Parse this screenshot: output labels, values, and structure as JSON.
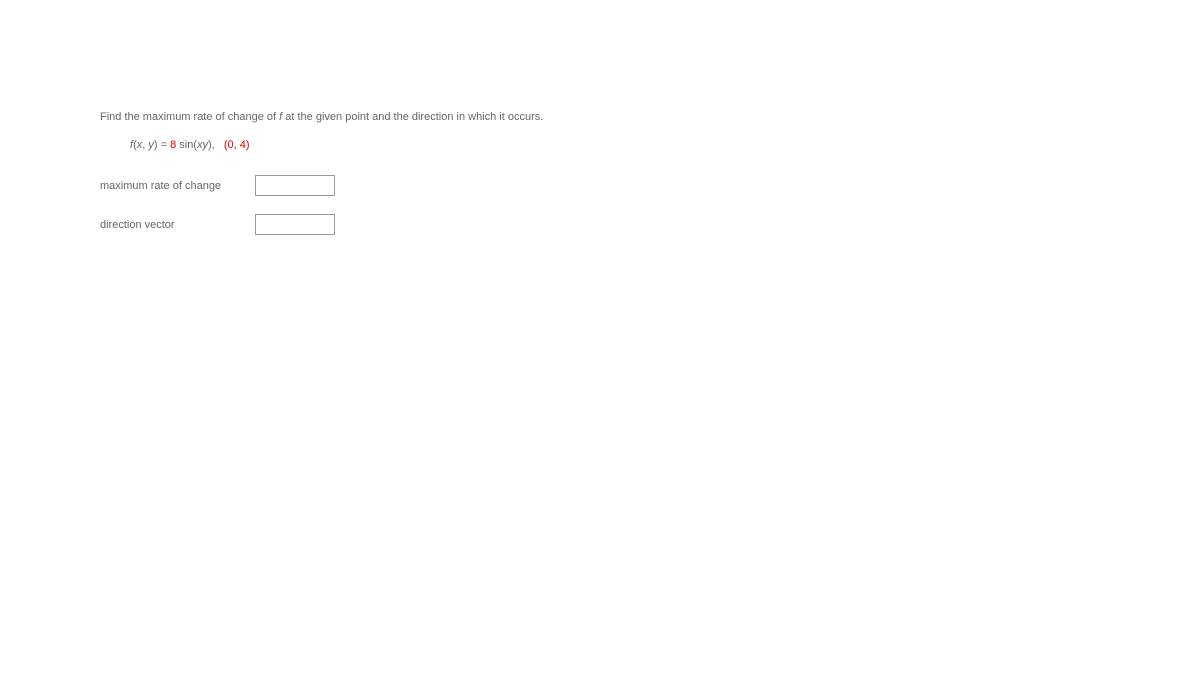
{
  "question": {
    "prompt_prefix": "Find the maximum rate of change of ",
    "function_var": "f",
    "prompt_suffix": " at the given point and the direction in which it occurs."
  },
  "formula": {
    "lhs_f": "f",
    "lhs_open": "(",
    "lhs_x": "x",
    "lhs_comma": ", ",
    "lhs_y": "y",
    "lhs_close": ") = ",
    "coeff": "8",
    "after_coeff": " sin(",
    "arg_x": "x",
    "arg_y": "y",
    "arg_close": "),",
    "gap": "   ",
    "point_open": "(",
    "point_a": "0",
    "point_sep": ", ",
    "point_b": "4",
    "point_close": ")"
  },
  "answers": {
    "max_rate_label": "maximum rate of change",
    "direction_label": "direction vector",
    "max_rate_value": "",
    "direction_value": ""
  },
  "style": {
    "text_color": "#666666",
    "accent_color": "#dd0000",
    "background_color": "#ffffff",
    "input_border_color": "#999999",
    "font_size_pt": 11
  }
}
